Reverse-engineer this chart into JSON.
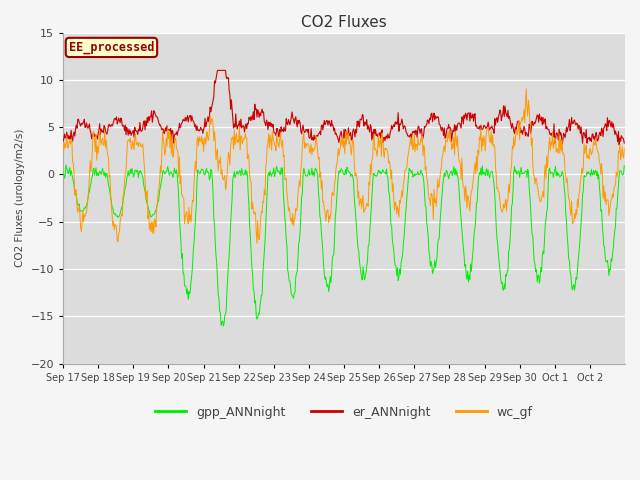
{
  "title": "CO2 Fluxes",
  "ylabel": "CO2 Fluxes (urology/m2/s)",
  "ylim": [
    -20,
    15
  ],
  "yticks": [
    -20,
    -15,
    -10,
    -5,
    0,
    5,
    10,
    15
  ],
  "date_labels": [
    "Sep 17",
    "Sep 18",
    "Sep 19",
    "Sep 20",
    "Sep 21",
    "Sep 22",
    "Sep 23",
    "Sep 24",
    "Sep 25",
    "Sep 26",
    "Sep 27",
    "Sep 28",
    "Sep 29",
    "Sep 30",
    "Oct 1",
    "Oct 2"
  ],
  "colors": {
    "gpp": "#00ee00",
    "er": "#cc0000",
    "wc": "#ff9900",
    "plot_bg": "#dcdcdc",
    "fig_bg": "#f5f5f5",
    "text": "#444444",
    "grid": "#ffffff"
  },
  "legend_box": {
    "text": "EE_processed",
    "facecolor": "#ffffcc",
    "edgecolor": "#990000",
    "textcolor": "#990000"
  },
  "legend_entries": [
    "gpp_ANNnight",
    "er_ANNnight",
    "wc_gf"
  ],
  "n_days": 16,
  "pts_per_day": 48
}
